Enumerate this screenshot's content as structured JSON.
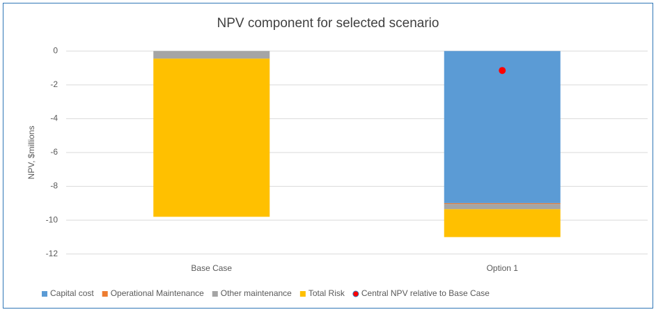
{
  "chart_data": {
    "type": "bar",
    "stacked": true,
    "title": "NPV component for selected scenario",
    "y_label": "NPV, $millions",
    "categories": [
      "Base Case",
      "Option 1"
    ],
    "series": [
      {
        "name": "Capital cost",
        "color": "#5b9bd5",
        "values": [
          0,
          -9.0
        ]
      },
      {
        "name": "Operational Maintenance",
        "color": "#ed7d31",
        "values": [
          0,
          -0.05
        ]
      },
      {
        "name": "Other maintenance",
        "color": "#a5a5a5",
        "values": [
          -0.45,
          -0.3
        ]
      },
      {
        "name": "Total Risk",
        "color": "#ffc000",
        "values": [
          -9.35,
          -1.65
        ]
      },
      {
        "name": "Central NPV relative to Base Case",
        "color": "#ff0000",
        "type": "scatter",
        "values": [
          null,
          -1.15
        ]
      }
    ],
    "ylim": [
      -12.3,
      0.3
    ],
    "yticks": [
      0,
      -2,
      -4,
      -6,
      -8,
      -10,
      -12
    ],
    "grid": true,
    "legend": "bottom"
  }
}
